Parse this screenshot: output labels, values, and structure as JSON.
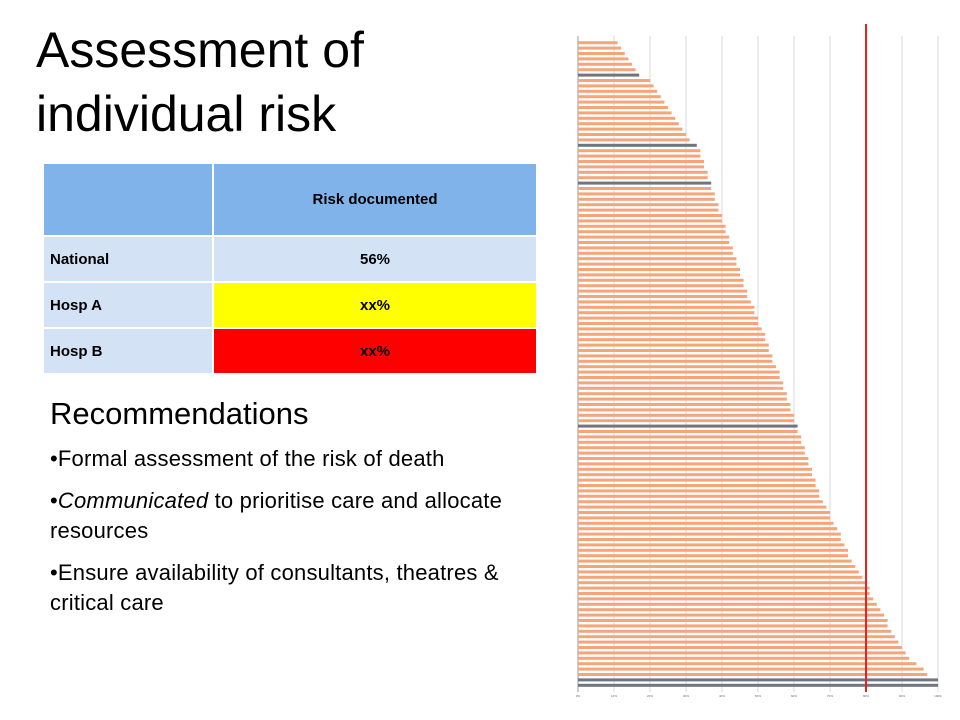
{
  "title": "Assessment of individual risk",
  "table": {
    "header": [
      "",
      "Risk documented"
    ],
    "rows": [
      [
        "National",
        "56%"
      ],
      [
        "Hosp A",
        "xx%"
      ],
      [
        "Hosp B",
        "xx%"
      ]
    ]
  },
  "recommendations": {
    "heading": "Recommendations",
    "bullets": [
      {
        "parts": [
          {
            "text": "•Formal assessment of the risk of death",
            "italic": false
          }
        ]
      },
      {
        "parts": [
          {
            "text": "•",
            "italic": false
          },
          {
            "text": "Communicated",
            "italic": true
          },
          {
            "text": " to prioritise care and allocate resources",
            "italic": false
          }
        ]
      },
      {
        "parts": [
          {
            "text": "•Ensure availability of consultants, theatres & critical care",
            "italic": false
          }
        ]
      }
    ]
  },
  "chart_data": {
    "type": "hbar",
    "xlim": [
      0,
      100
    ],
    "xticks": [
      {
        "value": 0,
        "label": "0%"
      },
      {
        "value": 10,
        "label": "10%"
      },
      {
        "value": 20,
        "label": "20%"
      },
      {
        "value": 30,
        "label": "30%"
      },
      {
        "value": 40,
        "label": "40%"
      },
      {
        "value": 50,
        "label": "50%"
      },
      {
        "value": 60,
        "label": "60%"
      },
      {
        "value": 70,
        "label": "70%"
      },
      {
        "value": 80,
        "label": "80%"
      },
      {
        "value": 90,
        "label": "90%"
      },
      {
        "value": 100,
        "label": "100%"
      }
    ],
    "grid": true,
    "reference": {
      "value": 80,
      "color": "#e8231f"
    },
    "series": [
      {
        "color": "#f5a57a",
        "values": [
          11,
          12,
          13,
          14,
          15,
          16,
          null,
          20,
          21,
          22,
          23,
          24,
          25,
          26,
          27,
          28,
          29,
          30,
          31,
          null,
          34,
          34,
          35,
          35,
          36,
          36,
          null,
          37,
          38,
          38,
          39,
          39,
          40,
          40,
          41,
          41,
          42,
          42,
          43,
          43,
          44,
          44,
          45,
          45,
          46,
          46,
          47,
          47,
          48,
          49,
          49,
          50,
          50,
          51,
          52,
          52,
          53,
          53,
          54,
          54,
          55,
          56,
          56,
          57,
          57,
          58,
          58,
          59,
          59,
          60,
          60,
          null,
          61,
          62,
          62,
          63,
          63,
          64,
          64,
          65,
          65,
          66,
          66,
          67,
          67,
          68,
          69,
          70,
          70,
          71,
          72,
          73,
          73,
          74,
          75,
          75,
          76,
          77,
          78,
          79,
          80,
          81,
          81,
          82,
          83,
          84,
          85,
          86,
          86,
          87,
          88,
          89,
          90,
          91,
          92,
          94,
          96,
          97,
          null,
          null
        ]
      },
      {
        "color": "#6f7680",
        "values": [
          null,
          null,
          null,
          null,
          null,
          null,
          17,
          null,
          null,
          null,
          null,
          null,
          null,
          null,
          null,
          null,
          null,
          null,
          null,
          33,
          null,
          null,
          null,
          null,
          null,
          null,
          37,
          null,
          null,
          null,
          null,
          null,
          null,
          null,
          null,
          null,
          null,
          null,
          null,
          null,
          null,
          null,
          null,
          null,
          null,
          null,
          null,
          null,
          null,
          null,
          null,
          null,
          null,
          null,
          null,
          null,
          null,
          null,
          null,
          null,
          null,
          null,
          null,
          null,
          null,
          null,
          null,
          null,
          null,
          null,
          null,
          61,
          null,
          null,
          null,
          null,
          null,
          null,
          null,
          null,
          null,
          null,
          null,
          null,
          null,
          null,
          null,
          null,
          null,
          null,
          null,
          null,
          null,
          null,
          null,
          null,
          null,
          null,
          null,
          null,
          null,
          null,
          null,
          null,
          null,
          null,
          null,
          null,
          null,
          null,
          null,
          null,
          null,
          null,
          null,
          null,
          null,
          null,
          100,
          100
        ]
      }
    ]
  }
}
